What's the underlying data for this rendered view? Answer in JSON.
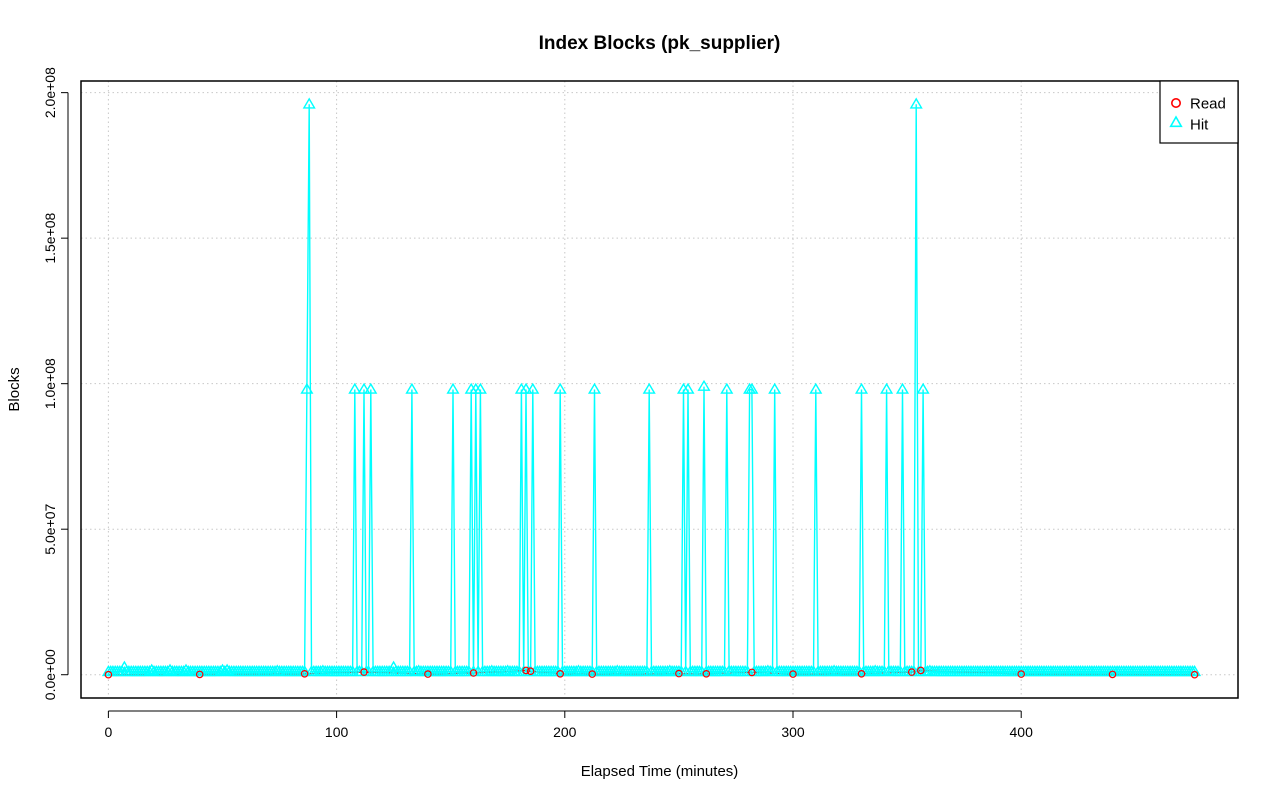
{
  "chart_data": {
    "type": "line",
    "title": "Index Blocks (pk_supplier)",
    "xlabel": "Elapsed Time (minutes)",
    "ylabel": "Blocks",
    "xlim": [
      -12,
      495
    ],
    "ylim": [
      -8000000,
      204000000
    ],
    "x_ticks": [
      0,
      100,
      200,
      300,
      400
    ],
    "x_tick_labels": [
      "0",
      "100",
      "200",
      "300",
      "400"
    ],
    "y_ticks": [
      0,
      50000000,
      100000000,
      150000000,
      200000000
    ],
    "y_tick_labels": [
      "0.0e+00",
      "5.0e+07",
      "1.0e+08",
      "1.5e+08",
      "2.0e+08"
    ],
    "grid": true,
    "legend_position": "top-right",
    "series": [
      {
        "name": "Read",
        "color": "#ff0000",
        "marker": "circle",
        "points": [
          [
            0,
            0
          ],
          [
            40,
            100000
          ],
          [
            86,
            300000
          ],
          [
            112,
            900000
          ],
          [
            140,
            200000
          ],
          [
            160,
            600000
          ],
          [
            183,
            1500000
          ],
          [
            185,
            1200000
          ],
          [
            198,
            300000
          ],
          [
            212,
            200000
          ],
          [
            250,
            400000
          ],
          [
            262,
            300000
          ],
          [
            282,
            800000
          ],
          [
            300,
            200000
          ],
          [
            330,
            300000
          ],
          [
            352,
            900000
          ],
          [
            356,
            1500000
          ],
          [
            400,
            200000
          ],
          [
            440,
            100000
          ],
          [
            476,
            0
          ]
        ]
      },
      {
        "name": "Hit",
        "color": "#00ffff",
        "marker": "triangle",
        "baseline": {
          "x_start": 0,
          "x_end": 476,
          "step": 1,
          "value": 1000000
        },
        "small_spikes": [
          [
            7,
            2500000
          ],
          [
            19,
            1500000
          ],
          [
            27,
            1500000
          ],
          [
            34,
            1500000
          ],
          [
            50,
            1500000
          ],
          [
            52,
            1500000
          ],
          [
            74,
            1200000
          ],
          [
            94,
            1200000
          ],
          [
            125,
            2500000
          ],
          [
            136,
            1200000
          ],
          [
            168,
            1200000
          ],
          [
            175,
            1200000
          ],
          [
            206,
            1200000
          ],
          [
            223,
            1200000
          ],
          [
            246,
            1200000
          ],
          [
            272,
            1200000
          ],
          [
            289,
            1200000
          ],
          [
            318,
            1200000
          ],
          [
            336,
            1200000
          ],
          [
            342,
            1200000
          ],
          [
            360,
            1200000
          ],
          [
            395,
            1000000
          ],
          [
            430,
            1000000
          ],
          [
            464,
            1000000
          ]
        ],
        "spikes": [
          [
            87,
            98000000
          ],
          [
            88,
            196000000
          ],
          [
            108,
            98000000
          ],
          [
            112,
            98000000
          ],
          [
            115,
            98000000
          ],
          [
            133,
            98000000
          ],
          [
            151,
            98000000
          ],
          [
            159,
            98000000
          ],
          [
            161,
            98000000
          ],
          [
            163,
            98000000
          ],
          [
            181,
            98000000
          ],
          [
            183,
            98000000
          ],
          [
            186,
            98000000
          ],
          [
            198,
            98000000
          ],
          [
            213,
            98000000
          ],
          [
            237,
            98000000
          ],
          [
            252,
            98000000
          ],
          [
            254,
            98000000
          ],
          [
            261,
            99000000
          ],
          [
            271,
            98000000
          ],
          [
            281,
            98000000
          ],
          [
            282,
            98000000
          ],
          [
            292,
            98000000
          ],
          [
            310,
            98000000
          ],
          [
            330,
            98000000
          ],
          [
            341,
            98000000
          ],
          [
            348,
            98000000
          ],
          [
            354,
            196000000
          ],
          [
            357,
            98000000
          ]
        ]
      }
    ]
  }
}
